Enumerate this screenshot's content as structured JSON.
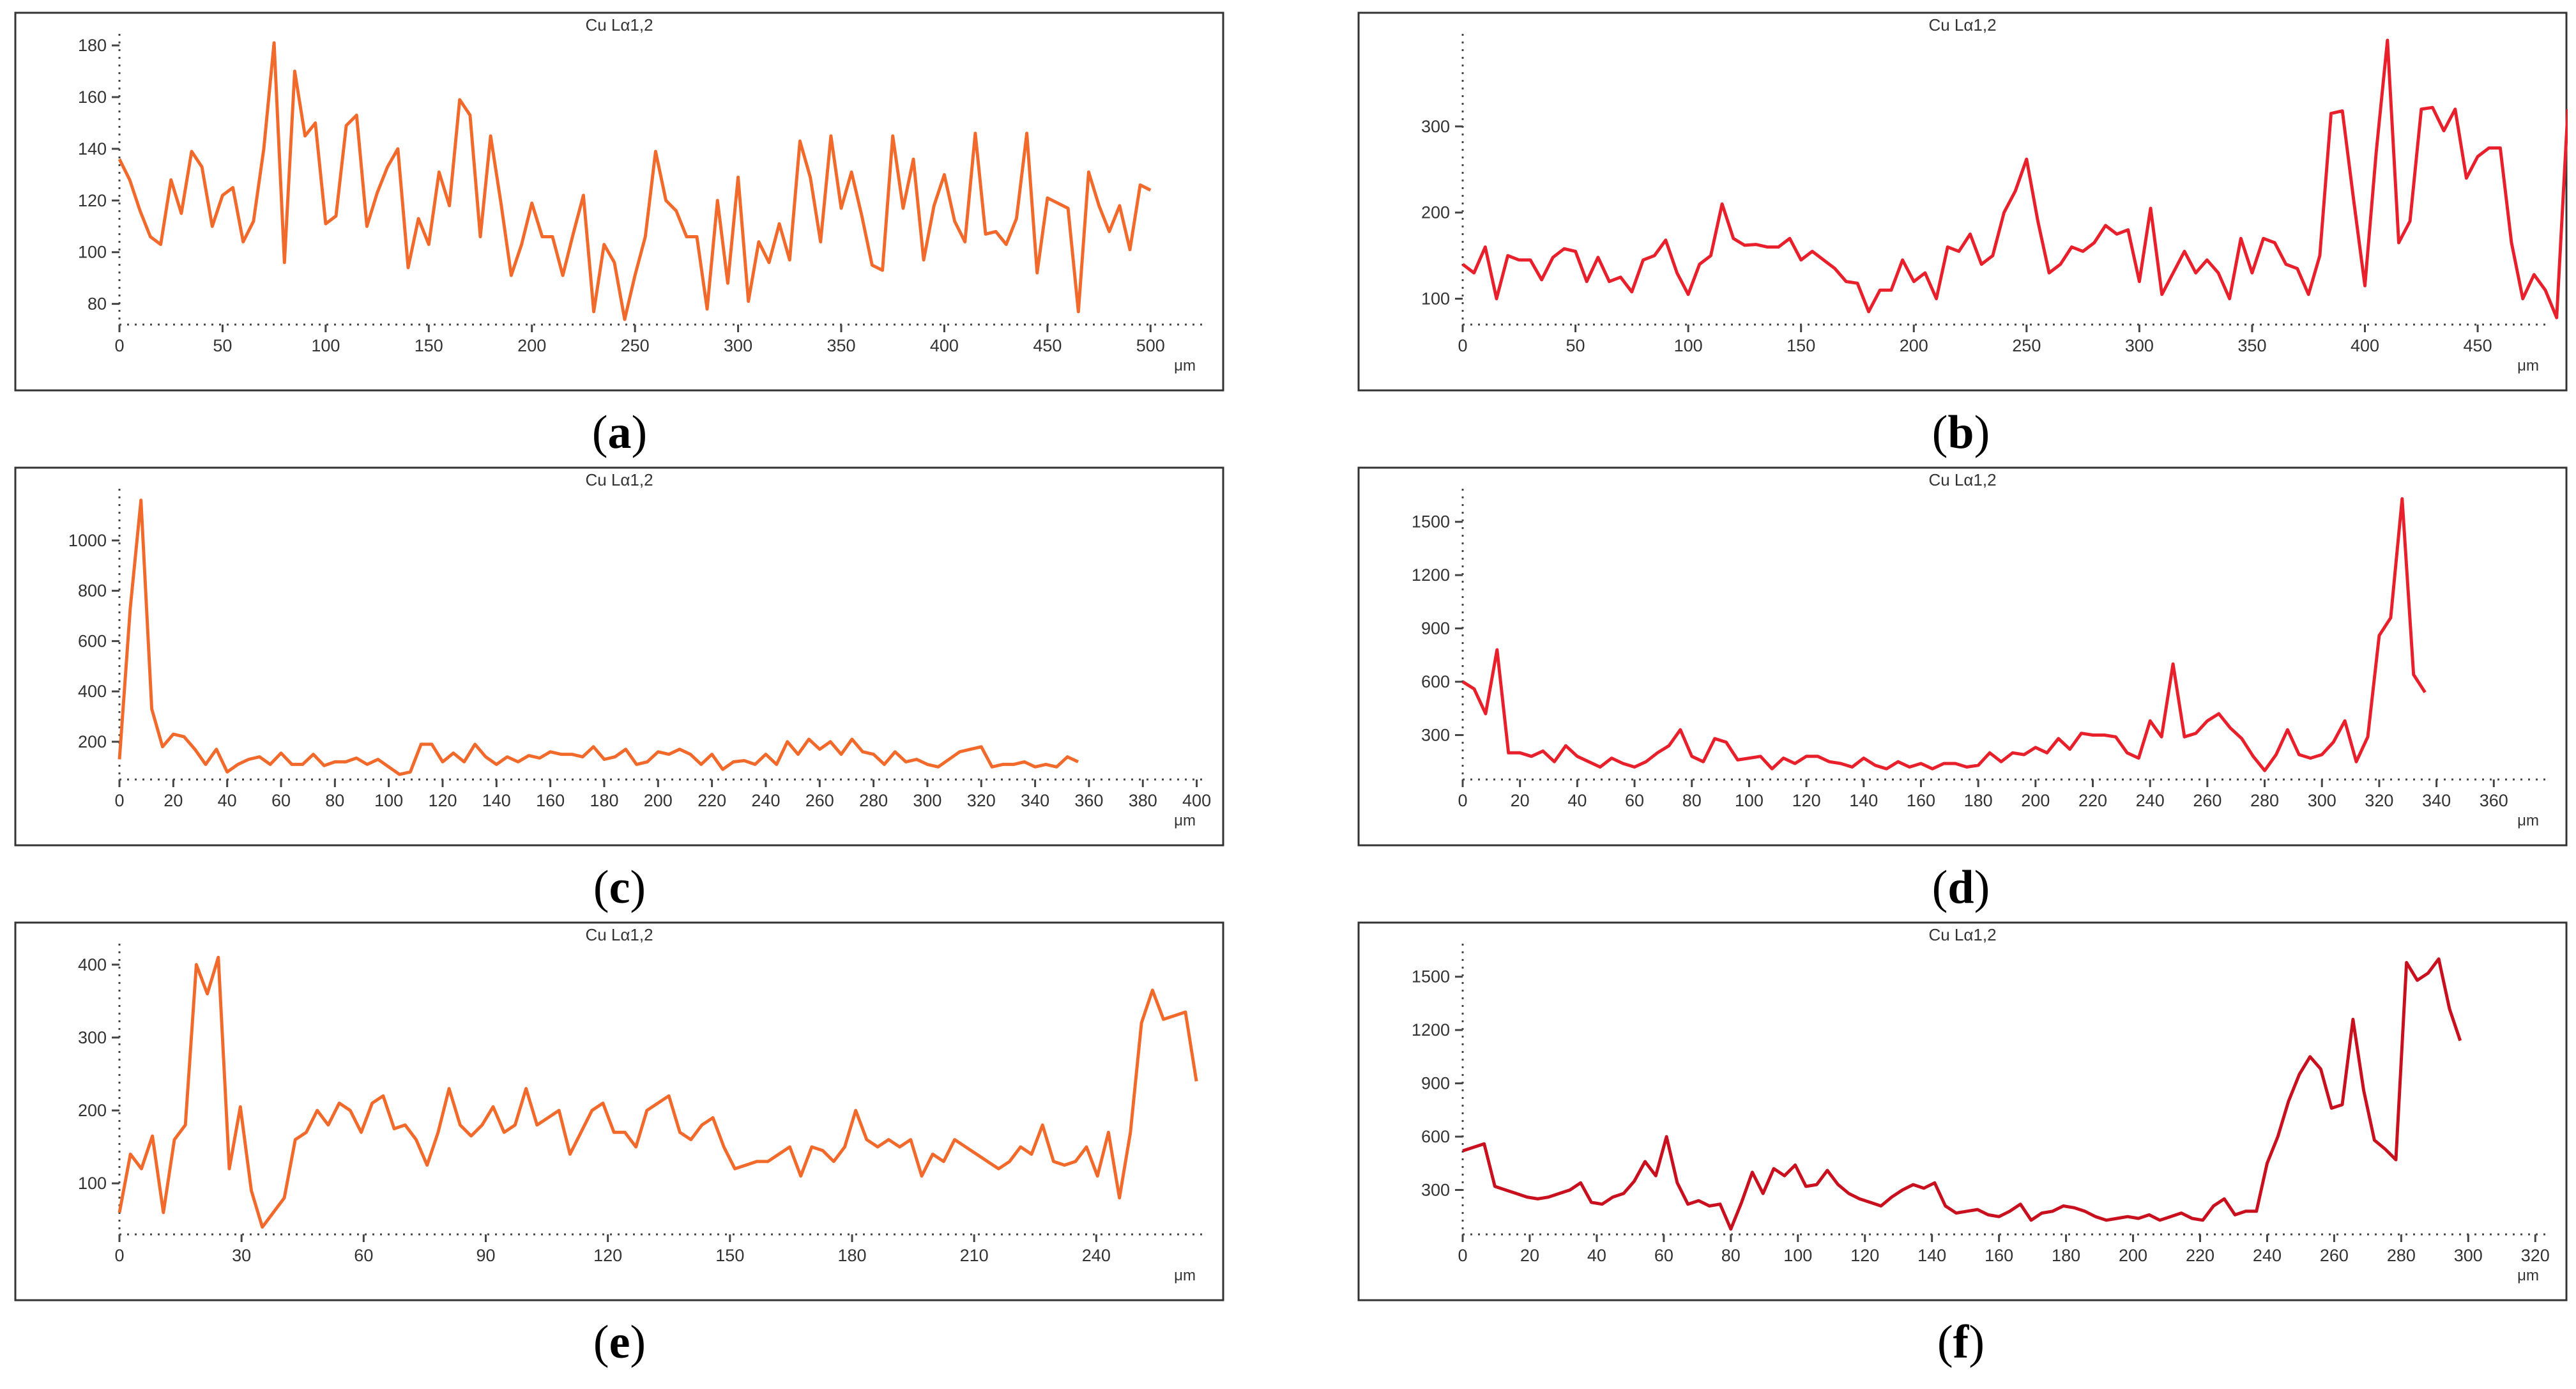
{
  "panels": [
    {
      "caption": "a",
      "color": "#f26a2b",
      "chart_data": {
        "type": "line",
        "title": "Cu Lα1,2",
        "xlabel": "μm",
        "ylabel": "",
        "xlim": [
          0,
          525
        ],
        "ylim": [
          72,
          182
        ],
        "xticks": [
          0,
          50,
          100,
          150,
          200,
          250,
          300,
          350,
          400,
          450,
          500
        ],
        "yticks": [
          80,
          100,
          120,
          140,
          160,
          180
        ],
        "x_start": 0,
        "x_step": 5,
        "values": [
          136,
          128,
          116,
          106,
          103,
          128,
          115,
          139,
          133,
          110,
          122,
          125,
          104,
          112,
          140,
          181,
          96,
          170,
          145,
          150,
          111,
          114,
          149,
          153,
          110,
          123,
          133,
          140,
          94,
          113,
          103,
          131,
          118,
          159,
          153,
          106,
          145,
          119,
          91,
          103,
          119,
          106,
          106,
          91,
          107,
          122,
          77,
          103,
          96,
          74,
          91,
          106,
          139,
          120,
          116,
          106,
          106,
          78,
          120,
          88,
          129,
          81,
          104,
          96,
          111,
          97,
          143,
          129,
          104,
          145,
          117,
          131,
          114,
          95,
          93,
          145,
          117,
          136,
          97,
          118,
          130,
          112,
          104,
          146,
          107,
          108,
          103,
          113,
          146,
          92,
          121,
          119,
          117,
          77,
          131,
          118,
          108,
          118,
          101,
          126,
          124
        ]
      }
    },
    {
      "caption": "b",
      "color": "#e8202b",
      "chart_data": {
        "type": "line",
        "title": "Cu Lα1,2",
        "xlabel": "μm",
        "ylabel": "",
        "xlim": [
          0,
          480
        ],
        "ylim": [
          70,
          400
        ],
        "xticks": [
          0,
          50,
          100,
          150,
          200,
          250,
          300,
          350,
          400,
          450
        ],
        "yticks": [
          100,
          200,
          300
        ],
        "x_start": 0,
        "x_step": 5,
        "values": [
          140,
          130,
          160,
          100,
          150,
          145,
          145,
          122,
          148,
          158,
          155,
          120,
          148,
          120,
          125,
          108,
          145,
          150,
          168,
          130,
          105,
          140,
          150,
          210,
          170,
          162,
          163,
          160,
          160,
          170,
          145,
          155,
          145,
          135,
          120,
          118,
          85,
          110,
          110,
          145,
          120,
          130,
          100,
          160,
          155,
          175,
          140,
          150,
          200,
          225,
          262,
          190,
          130,
          140,
          160,
          155,
          165,
          185,
          175,
          180,
          120,
          205,
          105,
          130,
          155,
          130,
          145,
          130,
          100,
          170,
          130,
          170,
          165,
          140,
          135,
          105,
          150,
          315,
          318,
          215,
          115,
          270,
          400,
          165,
          190,
          320,
          322,
          295,
          320,
          240,
          265,
          275,
          275,
          165,
          100,
          128,
          110,
          78,
          320
        ]
      }
    },
    {
      "caption": "c",
      "color": "#f26a2b",
      "chart_data": {
        "type": "line",
        "title": "Cu Lα1,2",
        "xlabel": "μm",
        "ylabel": "",
        "xlim": [
          0,
          402
        ],
        "ylim": [
          50,
          1180
        ],
        "xticks": [
          0,
          20,
          40,
          60,
          80,
          100,
          120,
          140,
          160,
          180,
          200,
          220,
          240,
          260,
          280,
          300,
          320,
          340,
          360,
          380,
          400
        ],
        "yticks": [
          200,
          400,
          600,
          800,
          1000
        ],
        "x_start": 0,
        "x_step": 4,
        "values": [
          130,
          730,
          1160,
          330,
          180,
          230,
          220,
          170,
          110,
          170,
          80,
          110,
          130,
          140,
          110,
          155,
          110,
          110,
          150,
          105,
          120,
          120,
          135,
          110,
          130,
          100,
          70,
          80,
          190,
          190,
          120,
          155,
          120,
          190,
          140,
          110,
          140,
          120,
          145,
          135,
          160,
          150,
          150,
          140,
          180,
          130,
          140,
          170,
          110,
          120,
          160,
          150,
          170,
          150,
          110,
          150,
          90,
          120,
          125,
          110,
          150,
          110,
          200,
          150,
          210,
          170,
          200,
          150,
          210,
          160,
          150,
          110,
          160,
          120,
          130,
          110,
          100,
          130,
          160,
          170,
          180,
          100,
          110,
          110,
          120,
          100,
          110,
          100,
          140,
          120
        ]
      }
    },
    {
      "caption": "d",
      "color": "#e8202b",
      "chart_data": {
        "type": "line",
        "title": "Cu Lα1,2",
        "xlabel": "μm",
        "ylabel": "",
        "xlim": [
          0,
          378
        ],
        "ylim": [
          50,
          1650
        ],
        "xticks": [
          0,
          20,
          40,
          60,
          80,
          100,
          120,
          140,
          160,
          180,
          200,
          220,
          240,
          260,
          280,
          300,
          320,
          340,
          360
        ],
        "yticks": [
          300,
          600,
          900,
          1200,
          1500
        ],
        "x_start": 0,
        "x_step": 4,
        "values": [
          600,
          560,
          420,
          780,
          200,
          200,
          180,
          210,
          150,
          240,
          180,
          150,
          120,
          170,
          140,
          120,
          150,
          200,
          240,
          330,
          180,
          150,
          280,
          260,
          160,
          170,
          180,
          110,
          170,
          140,
          180,
          180,
          150,
          140,
          120,
          170,
          130,
          110,
          150,
          120,
          140,
          110,
          140,
          140,
          120,
          130,
          200,
          150,
          200,
          190,
          230,
          200,
          280,
          220,
          310,
          300,
          300,
          290,
          200,
          170,
          380,
          290,
          700,
          290,
          310,
          380,
          420,
          340,
          280,
          180,
          100,
          190,
          330,
          190,
          170,
          190,
          260,
          380,
          150,
          290,
          860,
          960,
          1630,
          640,
          540
        ]
      }
    },
    {
      "caption": "e",
      "color": "#f26a2b",
      "chart_data": {
        "type": "line",
        "title": "Cu Lα1,2",
        "xlabel": "μm",
        "ylabel": "",
        "xlim": [
          0,
          266
        ],
        "ylim": [
          30,
          420
        ],
        "xticks": [
          0,
          30,
          60,
          90,
          120,
          150,
          180,
          210,
          240
        ],
        "yticks": [
          100,
          200,
          300,
          400
        ],
        "x_start": 0,
        "x_step": 2.7,
        "values": [
          60,
          140,
          120,
          165,
          60,
          160,
          180,
          400,
          360,
          410,
          120,
          205,
          90,
          40,
          60,
          80,
          160,
          170,
          200,
          180,
          210,
          200,
          170,
          210,
          220,
          175,
          180,
          160,
          125,
          170,
          230,
          180,
          165,
          180,
          205,
          170,
          180,
          230,
          180,
          190,
          200,
          140,
          170,
          200,
          210,
          170,
          170,
          150,
          200,
          210,
          220,
          170,
          160,
          180,
          190,
          150,
          120,
          125,
          130,
          130,
          140,
          150,
          110,
          150,
          145,
          130,
          150,
          200,
          160,
          150,
          160,
          150,
          160,
          110,
          140,
          130,
          160,
          150,
          140,
          130,
          120,
          130,
          150,
          140,
          180,
          130,
          125,
          130,
          150,
          110,
          170,
          80,
          170,
          320,
          365,
          325,
          330,
          335,
          240
        ]
      }
    },
    {
      "caption": "f",
      "color": "#c8101e",
      "chart_data": {
        "type": "line",
        "title": "Cu Lα1,2",
        "xlabel": "μm",
        "ylabel": "",
        "xlim": [
          0,
          323
        ],
        "ylim": [
          50,
          1650
        ],
        "xticks": [
          0,
          20,
          40,
          60,
          80,
          100,
          120,
          140,
          160,
          180,
          200,
          220,
          240,
          260,
          280,
          300,
          320
        ],
        "yticks": [
          300,
          600,
          900,
          1200,
          1500
        ],
        "x_start": 0,
        "x_step": 3.2,
        "values": [
          520,
          540,
          560,
          320,
          300,
          280,
          260,
          250,
          260,
          280,
          300,
          340,
          230,
          220,
          260,
          280,
          350,
          460,
          380,
          600,
          340,
          220,
          240,
          210,
          220,
          80,
          230,
          400,
          280,
          420,
          380,
          440,
          320,
          330,
          410,
          330,
          280,
          250,
          230,
          210,
          260,
          300,
          330,
          310,
          340,
          210,
          170,
          180,
          190,
          160,
          150,
          180,
          220,
          130,
          170,
          180,
          210,
          200,
          180,
          150,
          130,
          140,
          150,
          140,
          160,
          130,
          150,
          170,
          140,
          130,
          210,
          250,
          160,
          180,
          180,
          450,
          600,
          800,
          950,
          1050,
          980,
          760,
          780,
          1260,
          860,
          580,
          530,
          470,
          1580,
          1480,
          1520,
          1600,
          1320,
          1140
        ]
      }
    }
  ]
}
